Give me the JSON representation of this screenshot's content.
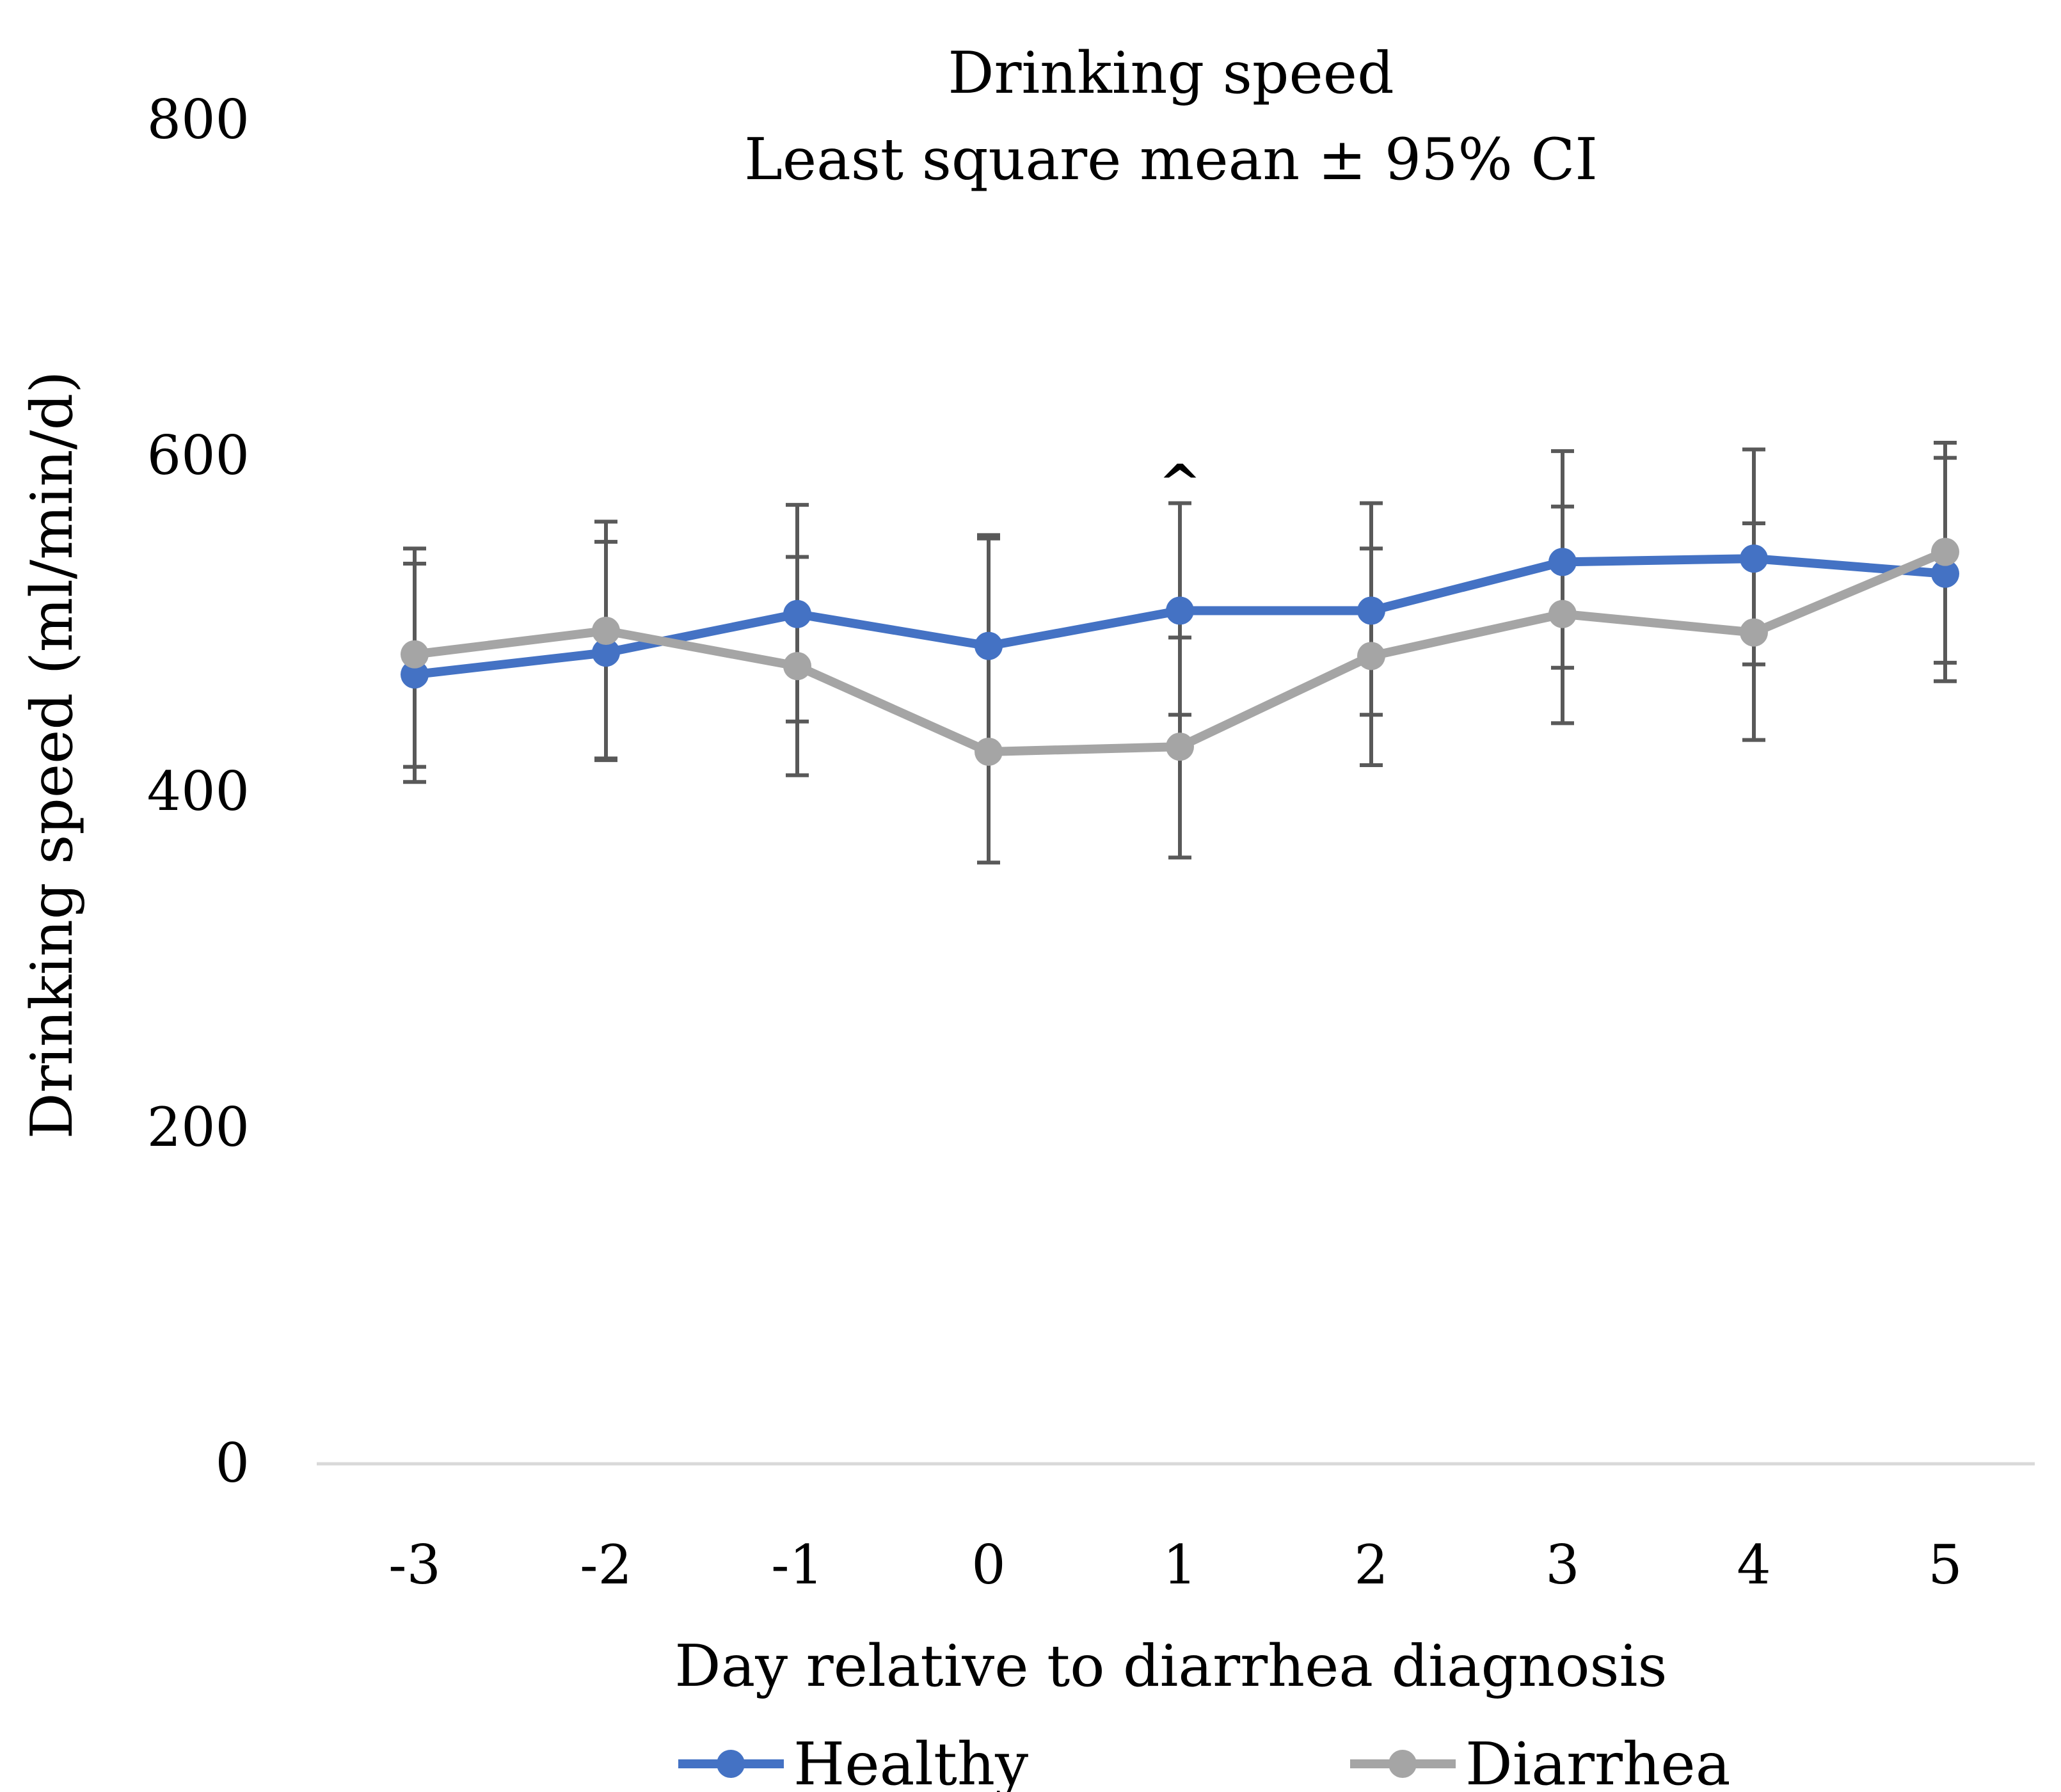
{
  "chart_data": {
    "type": "line",
    "title": "Drinking speed",
    "subtitle": "Least square mean ± 95% CI",
    "xlabel": "Day relative to diarrhea diagnosis",
    "ylabel": "Drinking  speed (ml/min/d)",
    "categories": [
      "-3",
      "-2",
      "-1",
      "0",
      "1",
      "2",
      "3",
      "4",
      "5"
    ],
    "ylim": [
      0,
      800
    ],
    "yticks": [
      {
        "value": 0,
        "label": "0"
      },
      {
        "value": 200,
        "label": "200"
      },
      {
        "value": 400,
        "label": "400"
      },
      {
        "value": 600,
        "label": "600"
      },
      {
        "value": 800,
        "label": "800"
      }
    ],
    "grid": false,
    "legend_position": "bottom",
    "series": [
      {
        "name": "Healthy",
        "color": "#4472C4",
        "values": [
          470,
          483,
          506,
          487,
          508,
          508,
          537,
          539,
          530
        ],
        "ci_lower": [
          415,
          420,
          442,
          425,
          446,
          446,
          474,
          476,
          466
        ],
        "ci_upper": [
          536,
          549,
          571,
          553,
          572,
          572,
          603,
          604,
          599
        ]
      },
      {
        "name": "Diarrhea",
        "color": "#A5A5A5",
        "values": [
          482,
          496,
          475,
          424,
          427,
          481,
          506,
          495,
          543
        ],
        "ci_lower": [
          406,
          419,
          410,
          358,
          361,
          416,
          441,
          431,
          477
        ],
        "ci_upper": [
          545,
          561,
          540,
          551,
          492,
          545,
          570,
          560,
          608
        ]
      }
    ],
    "error_bar_color": "#595959",
    "annotations": [
      {
        "category": "1",
        "value": 600,
        "text": "^"
      }
    ]
  }
}
